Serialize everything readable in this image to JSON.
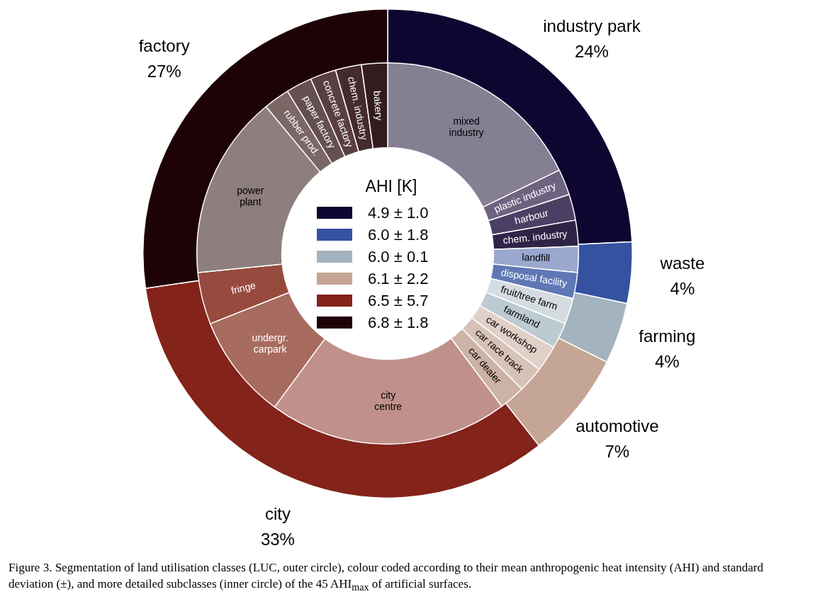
{
  "chart_data": [
    {
      "type": "donut",
      "categories": [
        "industry park",
        "waste",
        "farming",
        "automotive",
        "city",
        "factory"
      ],
      "values": [
        24,
        4,
        4,
        7,
        33,
        27
      ],
      "colors": [
        "#0e0630",
        "#3452a0",
        "#a3b4bf",
        "#c5a595",
        "#83231a",
        "#1e0306"
      ],
      "value_labels": [
        "24%",
        "4%",
        "4%",
        "7%",
        "33%",
        "27%"
      ],
      "legend_title": "AHI [K]",
      "annotations": [
        "4.9 ± 1.0",
        "6.0 ± 1.8",
        "6.0 ± 0.1",
        "6.1 ± 2.2",
        "6.5 ± 5.7",
        "6.8 ± 1.8"
      ]
    },
    {
      "type": "donut",
      "categories": [
        "mixed industry",
        "plastic industry",
        "harbour",
        "chem. industry",
        "landfill",
        "disposal facility",
        "fruit/tree farm",
        "farmland",
        "car workshop",
        "car race track",
        "car dealer",
        "city centre",
        "undergr. carpark",
        "fringe",
        "power plant",
        "rubber prod.",
        "paper factory",
        "concrete factory",
        "chem. industry",
        "bakery"
      ],
      "values": [
        17.8,
        2.2,
        2.2,
        2.2,
        2.2,
        2.2,
        2.2,
        2.2,
        2.2,
        2.2,
        2.2,
        20.3,
        8.9,
        4.4,
        15.6,
        2.2,
        2.2,
        2.2,
        2.2,
        2.2
      ],
      "colors": [
        "#857f93",
        "#6d6380",
        "#4c3f63",
        "#2f2447",
        "#9aa8cf",
        "#5f77b5",
        "#d4dce1",
        "#bccad1",
        "#e0d0c8",
        "#d7c2b8",
        "#cdb3a6",
        "#c0918a",
        "#a86b60",
        "#974b3e",
        "#8e7e7e",
        "#7a6766",
        "#654f4f",
        "#5a3f41",
        "#432b2e",
        "#331c1f"
      ],
      "annotations": [
        "Figure 3. Segmentation of land utilisation classes (LUC, outer circle), colour coded according to their mean anthropogenic heat intensity (AHI) and standard deviation (±), and more detailed subclasses (inner circle) of the 45 AHI$_{max}$ of artificial surfaces."
      ]
    }
  ]
}
